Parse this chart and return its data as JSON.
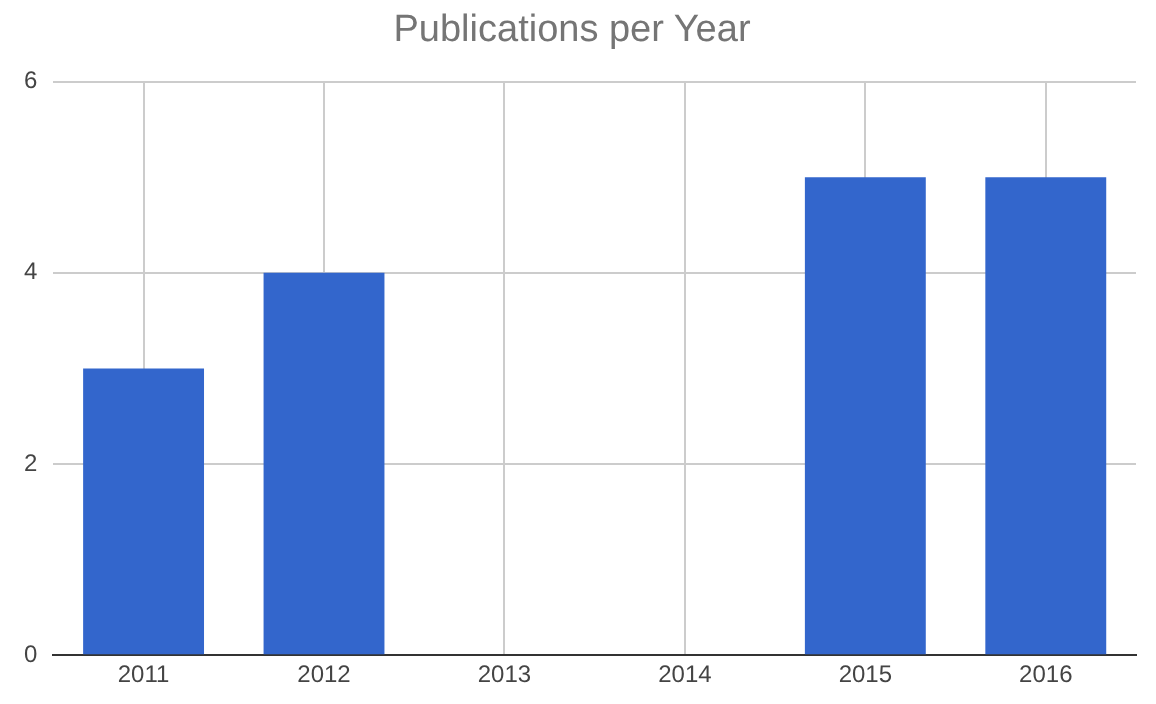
{
  "chart_data": {
    "type": "bar",
    "title": "Publications per Year",
    "categories": [
      "2011",
      "2012",
      "2013",
      "2014",
      "2015",
      "2016"
    ],
    "values": [
      3,
      4,
      0,
      0,
      5,
      5
    ],
    "color": "#3366cc",
    "ylim": [
      0,
      6
    ],
    "yticks": [
      0,
      2,
      4,
      6
    ],
    "grid": true,
    "legend": false
  }
}
